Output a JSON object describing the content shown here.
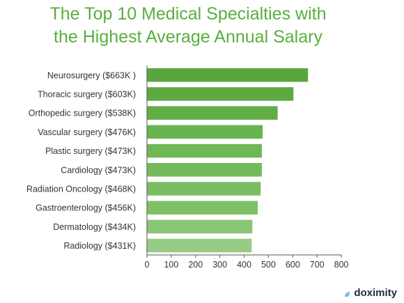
{
  "chart_data": {
    "type": "bar",
    "orientation": "horizontal",
    "title": "The Top 10 Medical Specialties with the Highest Average Annual Salary",
    "title_lines": [
      "The Top 10 Medical Specialties with",
      "the Highest Average Annual Salary"
    ],
    "categories": [
      "Neurosurgery ($663K )",
      "Thoracic surgery ($603K)",
      "Orthopedic surgery ($538K)",
      "Vascular surgery ($476K)",
      "Plastic surgery ($473K)",
      "Cardiology ($473K)",
      "Radiation Oncology ($468K)",
      "Gastroenterology ($456K)",
      "Dermatology ($434K)",
      "Radiology ($431K)"
    ],
    "values": [
      663,
      603,
      538,
      476,
      473,
      473,
      468,
      456,
      434,
      431
    ],
    "bar_colors": [
      "#5aa63d",
      "#5ea941",
      "#63ad47",
      "#6ab44f",
      "#70b856",
      "#74ba5a",
      "#79bd60",
      "#7ec066",
      "#8bc676",
      "#97cc85"
    ],
    "xlim": [
      0,
      800
    ],
    "xticks": [
      "0",
      "100",
      "200",
      "300",
      "400",
      "500",
      "600",
      "700",
      "800"
    ],
    "xlabel": "",
    "ylabel": "",
    "grid": false,
    "title_color": "#5aae3f"
  },
  "brand": {
    "name": "doximity",
    "icon": "doximity-logo-icon"
  }
}
